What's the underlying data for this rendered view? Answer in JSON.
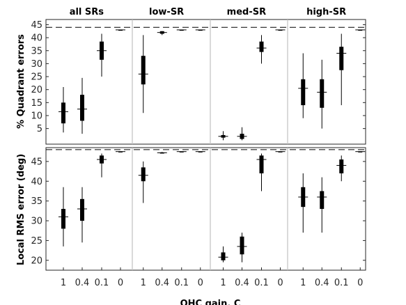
{
  "chart_data": {
    "type": "boxplot",
    "group_titles": [
      "all SRs",
      "low-SR",
      "med-SR",
      "high-SR"
    ],
    "x_tick_labels": [
      "1",
      "0.4",
      "0.1",
      "0"
    ],
    "xlabel": "OHC gain, C",
    "reference_style": "dashed",
    "panels": [
      {
        "ylabel": "% Quadrant errors",
        "yticks": [
          5,
          10,
          15,
          20,
          25,
          30,
          35,
          40,
          45
        ],
        "ylim": [
          -1,
          47
        ],
        "reference_line": 44,
        "groups": [
          {
            "name": "all SRs",
            "boxes": [
              {
                "x": "1",
                "wmin": 3.5,
                "q1": 7,
                "med": 11.5,
                "q3": 15,
                "wmax": 21
              },
              {
                "x": "0.4",
                "wmin": 3,
                "q1": 8,
                "med": 12.5,
                "q3": 18,
                "wmax": 24.5
              },
              {
                "x": "0.1",
                "wmin": 25,
                "q1": 31.5,
                "med": 35,
                "q3": 38.5,
                "wmax": 41.5
              },
              {
                "x": "0",
                "wmin": 43,
                "q1": 43,
                "med": 43,
                "q3": 43,
                "wmax": 43
              }
            ]
          },
          {
            "name": "low-SR",
            "boxes": [
              {
                "x": "1",
                "wmin": 11,
                "q1": 22,
                "med": 26,
                "q3": 33,
                "wmax": 41
              },
              {
                "x": "0.4",
                "wmin": 41,
                "q1": 41.5,
                "med": 42,
                "q3": 42.5,
                "wmax": 42.5
              },
              {
                "x": "0.1",
                "wmin": 43,
                "q1": 43,
                "med": 43,
                "q3": 43,
                "wmax": 43
              },
              {
                "x": "0",
                "wmin": 43,
                "q1": 43,
                "med": 43,
                "q3": 43,
                "wmax": 43
              }
            ]
          },
          {
            "name": "med-SR",
            "boxes": [
              {
                "x": "1",
                "wmin": 0.5,
                "q1": 1.5,
                "med": 2,
                "q3": 2.5,
                "wmax": 4
              },
              {
                "x": "0.4",
                "wmin": 0.5,
                "q1": 1,
                "med": 2,
                "q3": 3,
                "wmax": 5.5
              },
              {
                "x": "0.1",
                "wmin": 30,
                "q1": 34.5,
                "med": 36,
                "q3": 38.5,
                "wmax": 41
              },
              {
                "x": "0",
                "wmin": 43,
                "q1": 43,
                "med": 43,
                "q3": 43,
                "wmax": 43
              }
            ]
          },
          {
            "name": "high-SR",
            "boxes": [
              {
                "x": "1",
                "wmin": 9,
                "q1": 14,
                "med": 20.5,
                "q3": 24,
                "wmax": 34
              },
              {
                "x": "0.4",
                "wmin": 5,
                "q1": 13,
                "med": 19,
                "q3": 24,
                "wmax": 31.5
              },
              {
                "x": "0.1",
                "wmin": 14,
                "q1": 27.5,
                "med": 34,
                "q3": 36.5,
                "wmax": 41.5
              },
              {
                "x": "0",
                "wmin": 43,
                "q1": 43,
                "med": 43,
                "q3": 43,
                "wmax": 43
              }
            ]
          }
        ]
      },
      {
        "ylabel": "Local RMS error (deg)",
        "yticks": [
          20,
          25,
          30,
          35,
          40,
          45
        ],
        "ylim": [
          17.5,
          48.5
        ],
        "reference_line": 48,
        "groups": [
          {
            "name": "all SRs",
            "boxes": [
              {
                "x": "1",
                "wmin": 23.5,
                "q1": 28,
                "med": 31,
                "q3": 33,
                "wmax": 38.5
              },
              {
                "x": "0.4",
                "wmin": 24.5,
                "q1": 30,
                "med": 33,
                "q3": 35.5,
                "wmax": 38.5
              },
              {
                "x": "0.1",
                "wmin": 41,
                "q1": 44.5,
                "med": 45.5,
                "q3": 46.5,
                "wmax": 47
              },
              {
                "x": "0",
                "wmin": 47.5,
                "q1": 47.5,
                "med": 47.5,
                "q3": 47.5,
                "wmax": 47.5
              }
            ]
          },
          {
            "name": "low-SR",
            "boxes": [
              {
                "x": "1",
                "wmin": 34.5,
                "q1": 40,
                "med": 41.5,
                "q3": 43.5,
                "wmax": 45
              },
              {
                "x": "0.4",
                "wmin": 47,
                "q1": 47,
                "med": 47.2,
                "q3": 47.3,
                "wmax": 47.4
              },
              {
                "x": "0.1",
                "wmin": 47.5,
                "q1": 47.5,
                "med": 47.5,
                "q3": 47.5,
                "wmax": 47.5
              },
              {
                "x": "0",
                "wmin": 47.5,
                "q1": 47.5,
                "med": 47.5,
                "q3": 47.5,
                "wmax": 47.5
              }
            ]
          },
          {
            "name": "med-SR",
            "boxes": [
              {
                "x": "1",
                "wmin": 19.5,
                "q1": 20,
                "med": 20.8,
                "q3": 22,
                "wmax": 23.5
              },
              {
                "x": "0.4",
                "wmin": 19.5,
                "q1": 21.5,
                "med": 23.5,
                "q3": 26,
                "wmax": 27
              },
              {
                "x": "0.1",
                "wmin": 37.5,
                "q1": 42,
                "med": 45.5,
                "q3": 46.5,
                "wmax": 47
              },
              {
                "x": "0",
                "wmin": 47.5,
                "q1": 47.5,
                "med": 47.5,
                "q3": 47.5,
                "wmax": 47.5
              }
            ]
          },
          {
            "name": "high-SR",
            "boxes": [
              {
                "x": "1",
                "wmin": 27,
                "q1": 33.5,
                "med": 36,
                "q3": 38.5,
                "wmax": 42
              },
              {
                "x": "0.4",
                "wmin": 27,
                "q1": 33,
                "med": 36,
                "q3": 37.5,
                "wmax": 41
              },
              {
                "x": "0.1",
                "wmin": 40,
                "q1": 42,
                "med": 44,
                "q3": 45.5,
                "wmax": 46.5
              },
              {
                "x": "0",
                "wmin": 47.5,
                "q1": 47.5,
                "med": 47.5,
                "q3": 47.5,
                "wmax": 47.5
              }
            ]
          }
        ]
      }
    ]
  },
  "colors": {
    "box": "#000000",
    "axis": "#262626",
    "separator": "#c0c0c0",
    "reference": "#000000"
  }
}
